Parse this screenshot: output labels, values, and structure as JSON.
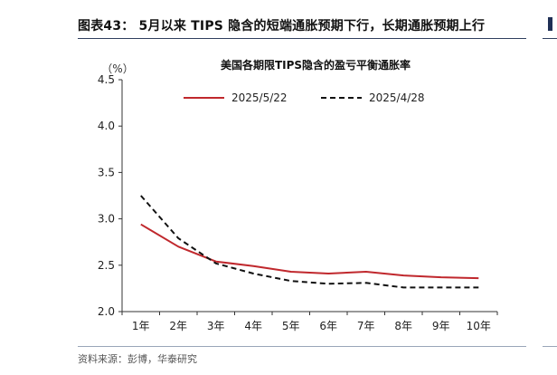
{
  "figure": {
    "title": "图表43： 5月以来 TIPS 隐含的短端通胀预期下行，长期通胀预期上行",
    "source": "资料来源：彭博，华泰研究"
  },
  "chart_data": {
    "type": "line",
    "title": "美国各期限TIPS隐含的盈亏平衡通胀率",
    "unit_label": "（%）",
    "categories": [
      "1年",
      "2年",
      "3年",
      "4年",
      "5年",
      "6年",
      "7年",
      "8年",
      "9年",
      "10年"
    ],
    "ylim": [
      2.0,
      4.5
    ],
    "yticks": [
      "2.0",
      "2.5",
      "3.0",
      "3.5",
      "4.0",
      "4.5"
    ],
    "grid": false,
    "legend_position": "top",
    "series": [
      {
        "name": "2025/5/22",
        "color": "#c0282d",
        "style": "solid",
        "values": [
          2.94,
          2.7,
          2.54,
          2.49,
          2.43,
          2.41,
          2.43,
          2.39,
          2.37,
          2.36
        ]
      },
      {
        "name": "2025/4/28",
        "color": "#111111",
        "style": "dashed",
        "values": [
          3.25,
          2.79,
          2.52,
          2.41,
          2.33,
          2.3,
          2.31,
          2.26,
          2.26,
          2.26
        ]
      }
    ]
  }
}
